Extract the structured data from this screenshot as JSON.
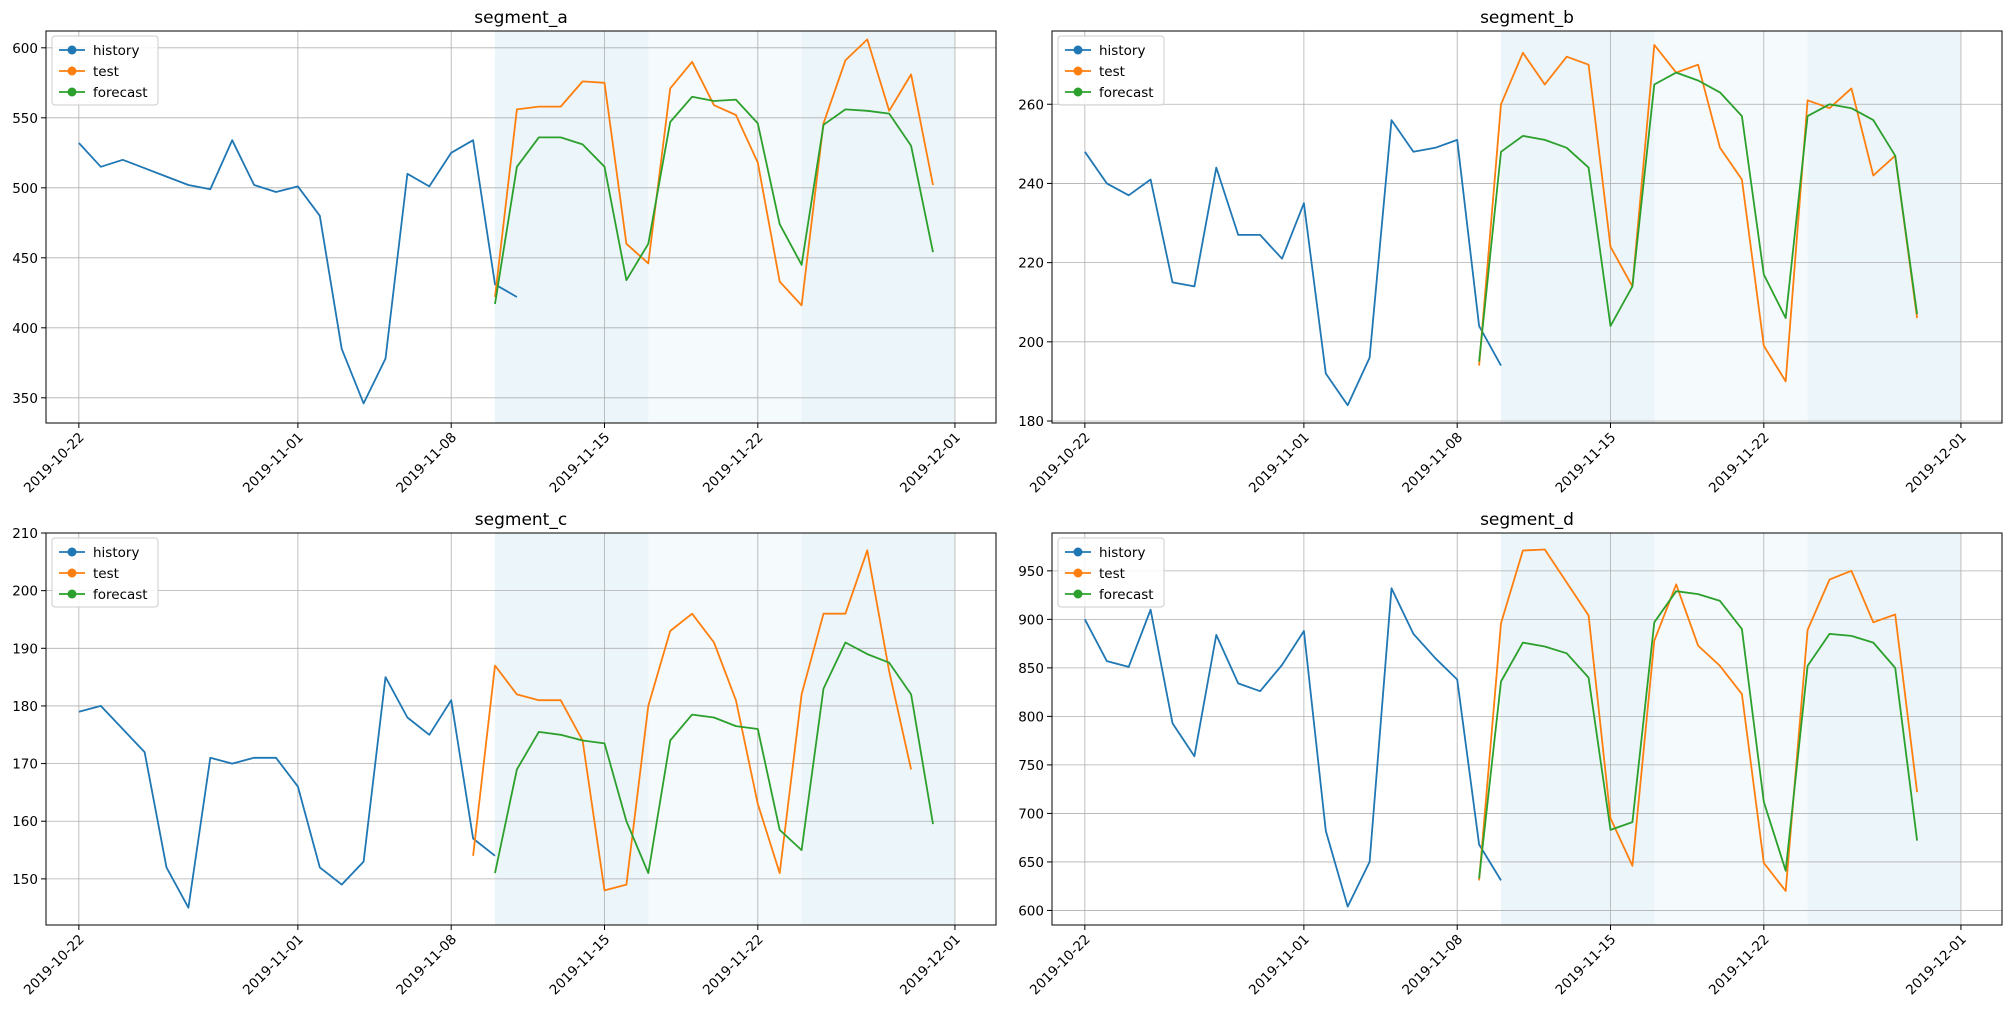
{
  "colors": {
    "history": "#1f77b4",
    "test": "#ff7f0e",
    "forecast": "#2ca02c",
    "fold_shade": "#d2e8f4",
    "grid": "#b0b0b0"
  },
  "chart_data": [
    {
      "type": "line",
      "title": "segment_a",
      "xlabel": "",
      "ylabel": "",
      "x_axis": "date",
      "xlim": [
        "2019-10-20T12:00",
        "2019-12-02T21:00"
      ],
      "ylim": [
        332,
        612
      ],
      "xticks": [
        "2019-10-22",
        "2019-11-01",
        "2019-11-08",
        "2019-11-15",
        "2019-11-22",
        "2019-12-01"
      ],
      "yticks": [
        350,
        400,
        450,
        500,
        550,
        600
      ],
      "grid": true,
      "legend": {
        "position": "top-left",
        "entries": [
          "history",
          "test",
          "forecast"
        ]
      },
      "shaded_folds": [
        [
          "2019-11-10",
          "2019-11-17"
        ],
        [
          "2019-11-17",
          "2019-11-24"
        ],
        [
          "2019-11-24",
          "2019-12-01"
        ]
      ],
      "series": [
        {
          "name": "history",
          "x_start": "2019-10-22",
          "values": [
            532,
            515,
            520,
            514,
            508,
            502,
            499,
            534,
            502,
            497,
            501,
            480,
            385,
            346,
            378,
            510,
            501,
            525,
            534,
            431,
            422
          ]
        },
        {
          "name": "test",
          "x_start": "2019-11-10",
          "values": [
            422,
            556,
            558,
            558,
            576,
            575,
            460,
            446,
            571,
            590,
            559,
            552,
            518,
            433,
            416,
            546,
            591,
            606,
            555,
            581,
            502
          ]
        },
        {
          "name": "forecast",
          "x_start": "2019-11-10",
          "values": [
            417,
            515,
            536,
            536,
            531,
            515,
            434,
            460,
            547,
            565,
            562,
            563,
            546,
            474,
            445,
            545,
            556,
            555,
            553,
            530,
            454
          ]
        }
      ]
    },
    {
      "type": "line",
      "title": "segment_b",
      "xlabel": "",
      "ylabel": "",
      "x_axis": "date",
      "xlim": [
        "2019-10-20T12:00",
        "2019-12-02T21:00"
      ],
      "ylim": [
        179.5,
        278.5
      ],
      "xticks": [
        "2019-10-22",
        "2019-11-01",
        "2019-11-08",
        "2019-11-15",
        "2019-11-22",
        "2019-12-01"
      ],
      "yticks": [
        180,
        200,
        220,
        240,
        260
      ],
      "grid": true,
      "legend": {
        "position": "top-left",
        "entries": [
          "history",
          "test",
          "forecast"
        ]
      },
      "shaded_folds": [
        [
          "2019-11-10",
          "2019-11-17"
        ],
        [
          "2019-11-17",
          "2019-11-24"
        ],
        [
          "2019-11-24",
          "2019-12-01"
        ]
      ],
      "series": [
        {
          "name": "history",
          "x_start": "2019-10-22",
          "values": [
            248,
            240,
            237,
            241,
            215,
            214,
            244,
            227,
            227,
            221,
            235,
            192,
            184,
            196,
            256,
            248,
            249,
            251,
            204,
            194
          ]
        },
        {
          "name": "test",
          "x_start": "2019-11-09",
          "values": [
            194,
            260,
            273,
            265,
            272,
            270,
            224,
            214,
            275,
            268,
            270,
            249,
            241,
            199,
            190,
            261,
            259,
            264,
            242,
            247,
            206
          ]
        },
        {
          "name": "forecast",
          "x_start": "2019-11-09",
          "values": [
            195,
            248,
            252,
            251,
            249,
            244,
            204,
            214,
            265,
            268,
            266,
            263,
            257,
            217,
            206,
            257,
            260,
            259,
            256,
            247,
            207
          ]
        }
      ]
    },
    {
      "type": "line",
      "title": "segment_c",
      "xlabel": "",
      "ylabel": "",
      "x_axis": "date",
      "xlim": [
        "2019-10-20T12:00",
        "2019-12-02T21:00"
      ],
      "ylim": [
        142,
        210
      ],
      "xticks": [
        "2019-10-22",
        "2019-11-01",
        "2019-11-08",
        "2019-11-15",
        "2019-11-22",
        "2019-12-01"
      ],
      "yticks": [
        150,
        160,
        170,
        180,
        190,
        200,
        210
      ],
      "grid": true,
      "legend": {
        "position": "top-left",
        "entries": [
          "history",
          "test",
          "forecast"
        ]
      },
      "shaded_folds": [
        [
          "2019-11-10",
          "2019-11-17"
        ],
        [
          "2019-11-17",
          "2019-11-24"
        ],
        [
          "2019-11-24",
          "2019-12-01"
        ]
      ],
      "series": [
        {
          "name": "history",
          "x_start": "2019-10-22",
          "values": [
            179,
            180,
            176,
            172,
            152,
            145,
            171,
            170,
            171,
            171,
            166,
            152,
            149,
            153,
            185,
            178,
            175,
            181,
            157,
            154
          ]
        },
        {
          "name": "test",
          "x_start": "2019-11-09",
          "values": [
            154,
            187,
            182,
            181,
            181,
            174,
            148,
            149,
            180,
            193,
            196,
            191,
            181,
            163,
            151,
            182,
            196,
            196,
            207,
            186,
            169
          ]
        },
        {
          "name": "forecast",
          "x_start": "2019-11-10",
          "values": [
            151,
            169,
            175.5,
            175,
            174,
            173.5,
            160,
            151,
            174,
            178.5,
            178,
            176.5,
            176,
            158.5,
            155,
            183,
            191,
            189,
            187.5,
            182,
            159.5
          ]
        }
      ]
    },
    {
      "type": "line",
      "title": "segment_d",
      "xlabel": "",
      "ylabel": "",
      "x_axis": "date",
      "xlim": [
        "2019-10-20T12:00",
        "2019-12-02T21:00"
      ],
      "ylim": [
        585,
        989
      ],
      "xticks": [
        "2019-10-22",
        "2019-11-01",
        "2019-11-08",
        "2019-11-15",
        "2019-11-22",
        "2019-12-01"
      ],
      "yticks": [
        600,
        650,
        700,
        750,
        800,
        850,
        900,
        950
      ],
      "grid": true,
      "legend": {
        "position": "top-left",
        "entries": [
          "history",
          "test",
          "forecast"
        ]
      },
      "shaded_folds": [
        [
          "2019-11-10",
          "2019-11-17"
        ],
        [
          "2019-11-17",
          "2019-11-24"
        ],
        [
          "2019-11-24",
          "2019-12-01"
        ]
      ],
      "series": [
        {
          "name": "history",
          "x_start": "2019-10-22",
          "values": [
            900,
            857,
            851,
            910,
            793,
            759,
            884,
            834,
            826,
            853,
            888,
            682,
            604,
            650,
            932,
            885,
            860,
            838,
            668,
            631
          ]
        },
        {
          "name": "test",
          "x_start": "2019-11-09",
          "values": [
            631,
            896,
            971,
            972,
            938,
            904,
            695,
            646,
            878,
            936,
            873,
            852,
            823,
            649,
            620,
            889,
            941,
            950,
            897,
            905,
            722
          ]
        },
        {
          "name": "forecast",
          "x_start": "2019-11-09",
          "values": [
            633,
            836,
            876,
            872,
            865,
            840,
            683,
            691,
            897,
            929,
            926,
            919,
            890,
            712,
            641,
            852,
            885,
            883,
            876,
            850,
            672
          ]
        }
      ]
    }
  ]
}
